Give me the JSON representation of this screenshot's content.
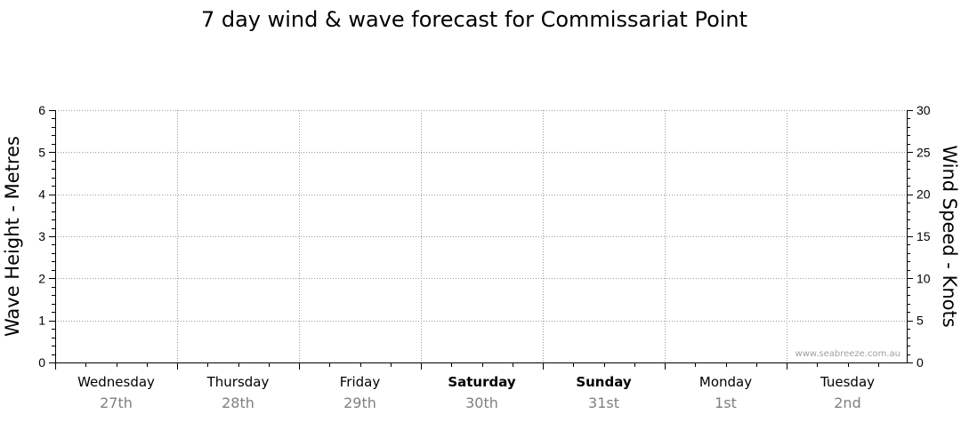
{
  "chart_data": {
    "type": "line",
    "title": "7 day wind & wave forecast for Commissariat Point",
    "ylabel_left": "Wave Height - Metres",
    "ylabel_right": "Wind Speed - Knots",
    "ylim_left": [
      0,
      6
    ],
    "ylim_right": [
      0,
      30
    ],
    "yticks_left": [
      "0",
      "1",
      "2",
      "3",
      "4",
      "5",
      "6"
    ],
    "yticks_right": [
      "0",
      "5",
      "10",
      "15",
      "20",
      "25",
      "30"
    ],
    "days": [
      {
        "name": "Wednesday",
        "date": "27th",
        "bold": false
      },
      {
        "name": "Thursday",
        "date": "28th",
        "bold": false
      },
      {
        "name": "Friday",
        "date": "29th",
        "bold": false
      },
      {
        "name": "Saturday",
        "date": "30th",
        "bold": true
      },
      {
        "name": "Sunday",
        "date": "31st",
        "bold": true
      },
      {
        "name": "Monday",
        "date": "1st",
        "bold": false
      },
      {
        "name": "Tuesday",
        "date": "2nd",
        "bold": false
      }
    ],
    "series": [],
    "grid": true,
    "watermark": "www.seabreeze.com.au"
  }
}
